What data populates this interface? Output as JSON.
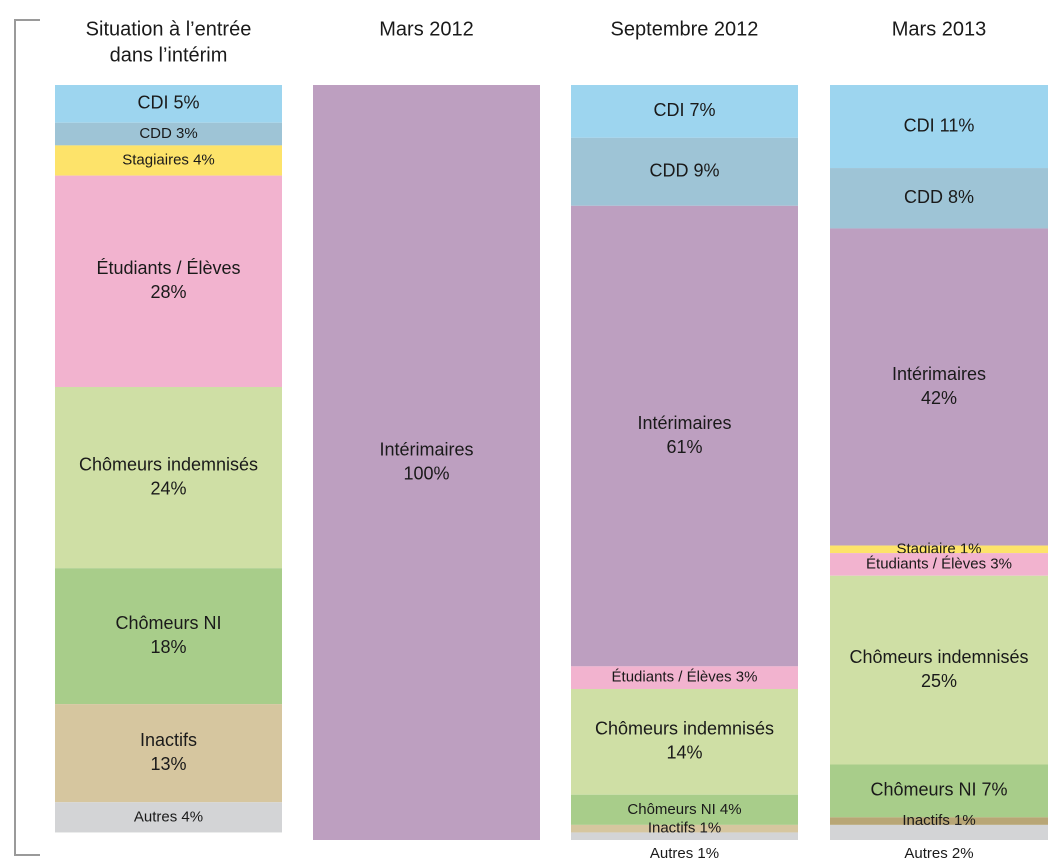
{
  "chart_data": {
    "type": "stacked_column",
    "columns": [
      {
        "title": [
          "Situation à l’entrée",
          "dans l’intérim"
        ],
        "segments": [
          {
            "label": [
              "CDI  5%"
            ],
            "value": 5,
            "color": "#9dd5ef"
          },
          {
            "label": [
              "CDD  3%"
            ],
            "value": 3,
            "color": "#9ec4d6"
          },
          {
            "label": [
              "Stagiaires 4%"
            ],
            "value": 4,
            "color": "#fde36a"
          },
          {
            "label": [
              "Étudiants / Élèves",
              "28%"
            ],
            "value": 28,
            "color": "#f2b3cf"
          },
          {
            "label": [
              "Chômeurs indemnisés",
              "24%"
            ],
            "value": 24,
            "color": "#cfdfa5"
          },
          {
            "label": [
              "Chômeurs NI",
              "18%"
            ],
            "value": 18,
            "color": "#a8cd8a"
          },
          {
            "label": [
              "Inactifs",
              "13%"
            ],
            "value": 13,
            "color": "#d6c69f"
          },
          {
            "label": [
              "Autres  4%"
            ],
            "value": 4,
            "color": "#d3d4d6"
          }
        ]
      },
      {
        "title": [
          "Mars 2012"
        ],
        "segments": [
          {
            "label": [
              "Intérimaires",
              "100%"
            ],
            "value": 100,
            "color": "#bd9fc0"
          }
        ]
      },
      {
        "title": [
          "Septembre 2012"
        ],
        "segments": [
          {
            "label": [
              "CDI  7%"
            ],
            "value": 7,
            "color": "#9dd5ef"
          },
          {
            "label": [
              "CDD  9%"
            ],
            "value": 9,
            "color": "#9ec4d6"
          },
          {
            "label": [
              "Intérimaires",
              "61%"
            ],
            "value": 61,
            "color": "#bd9fc0"
          },
          {
            "label": [
              "Étudiants / Élèves   3%"
            ],
            "value": 3,
            "color": "#f2b3cf"
          },
          {
            "label": [
              "Chômeurs indemnisés",
              "14%"
            ],
            "value": 14,
            "color": "#cfdfa5"
          },
          {
            "label": [
              "Chômeurs NI   4%"
            ],
            "value": 4,
            "color": "#a8cd8a"
          },
          {
            "label": [
              "Inactifs 1%"
            ],
            "value": 1,
            "color": "#d6c69f"
          },
          {
            "label": [
              "Autres  1%"
            ],
            "value": 1,
            "color": "#d3d4d6"
          }
        ]
      },
      {
        "title": [
          "Mars 2013"
        ],
        "segments": [
          {
            "label": [
              "CDI  11%"
            ],
            "value": 11,
            "color": "#9dd5ef"
          },
          {
            "label": [
              "CDD  8%"
            ],
            "value": 8,
            "color": "#9ec4d6"
          },
          {
            "label": [
              "Intérimaires",
              "42%"
            ],
            "value": 42,
            "color": "#bd9fc0"
          },
          {
            "label": [
              "Stagiaire 1%"
            ],
            "value": 1,
            "color": "#fde36a"
          },
          {
            "label": [
              "Étudiants / Élèves 3%"
            ],
            "value": 3,
            "color": "#f2b3cf"
          },
          {
            "label": [
              "Chômeurs indemnisés",
              "25%"
            ],
            "value": 25,
            "color": "#cfdfa5"
          },
          {
            "label": [
              "Chômeurs NI   7%"
            ],
            "value": 7,
            "color": "#a8cd8a"
          },
          {
            "label": [
              "Inactifs  1%"
            ],
            "value": 1,
            "color": "#b8a676"
          },
          {
            "label": [
              "Autres  2%"
            ],
            "value": 2,
            "color": "#d3d4d6"
          }
        ]
      }
    ]
  }
}
